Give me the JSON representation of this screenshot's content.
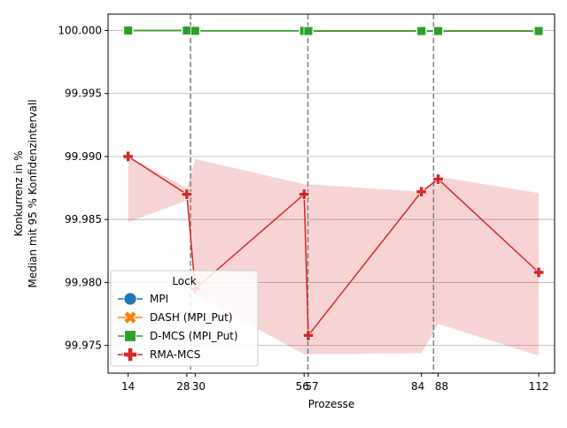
{
  "chart_data": {
    "type": "line",
    "xlabel": "Prozesse",
    "ylabel_lines": [
      "Konkurrenz in %",
      "Median mit 95 % Konfidenzintervall"
    ],
    "x_ticks": [
      14,
      28,
      30,
      56,
      57,
      84,
      88,
      112
    ],
    "x_tick_labels": [
      "14",
      "28",
      "30",
      "56",
      "57",
      "84",
      "88",
      "112"
    ],
    "y_ticks": [
      99.975,
      99.98,
      99.985,
      99.99,
      99.995,
      100.0
    ],
    "y_tick_labels": [
      "99.975",
      "99.980",
      "99.985",
      "99.990",
      "99.995",
      "100.000"
    ],
    "xlim": [
      9.2,
      115.8
    ],
    "ylim": [
      99.9728,
      100.0013
    ],
    "grid": "y",
    "vlines": [
      28.9,
      56.9,
      86.9
    ],
    "legend": {
      "title": "Lock",
      "position": "lower-left"
    },
    "series": [
      {
        "name": "MPI",
        "color": "#1f77b4",
        "marker": "circle",
        "x": [
          14,
          28,
          30,
          56,
          57,
          84,
          88,
          112
        ],
        "y": [
          100.0,
          100.0,
          99.99997,
          99.99997,
          99.99996,
          99.99996,
          99.99996,
          99.99996
        ]
      },
      {
        "name": "DASH (MPI_Put)",
        "color": "#ff7f0e",
        "marker": "x",
        "x": [
          14,
          28,
          30,
          56,
          57,
          84,
          88,
          112
        ],
        "y": [
          100.0,
          100.0,
          99.99998,
          99.99998,
          99.99997,
          99.99997,
          99.99997,
          99.99998
        ],
        "ci_low": [
          100.0,
          99.99995,
          99.99993,
          99.99993,
          99.99992,
          99.99992,
          99.99992,
          99.99993
        ],
        "ci_high": [
          100.0,
          100.0,
          100.0,
          100.0,
          100.0,
          100.0,
          100.0,
          100.0
        ]
      },
      {
        "name": "D-MCS (MPI_Put)",
        "color": "#2ca02c",
        "marker": "square",
        "x": [
          14,
          28,
          30,
          56,
          57,
          84,
          88,
          112
        ],
        "y": [
          100.0,
          100.0,
          99.99997,
          99.99997,
          99.99996,
          99.99996,
          99.99996,
          99.99996
        ],
        "ci_low": [
          100.0,
          99.99995,
          99.99992,
          99.99992,
          99.99991,
          99.99991,
          99.99991,
          99.99991
        ],
        "ci_high": [
          100.0,
          100.0,
          99.99999,
          99.99999,
          99.99998,
          99.99998,
          99.99998,
          99.99998
        ]
      },
      {
        "name": "RMA-MCS",
        "color": "#d62728",
        "marker": "plus",
        "x": [
          14,
          28,
          30,
          56,
          57,
          84,
          88,
          112
        ],
        "y": [
          99.99,
          99.987,
          99.9795,
          99.987,
          99.9758,
          99.9872,
          99.9882,
          99.9808
        ],
        "ci_low": [
          99.9848,
          99.9865,
          99.979,
          99.9743,
          99.9743,
          99.9744,
          99.9767,
          99.9742
        ],
        "ci_high": [
          99.99,
          99.9875,
          99.9898,
          99.9878,
          99.9878,
          99.9872,
          99.9884,
          99.9871
        ]
      }
    ]
  }
}
